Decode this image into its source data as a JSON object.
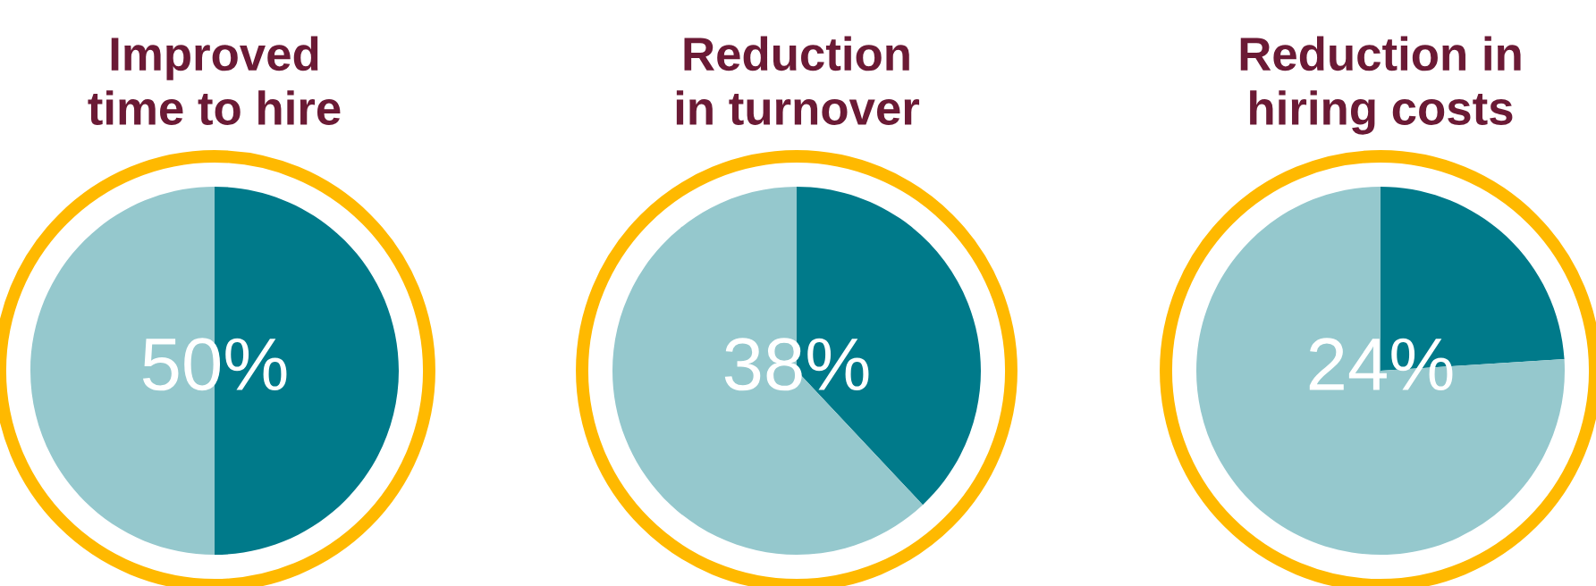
{
  "chart_data": [
    {
      "type": "pie",
      "title": "Improved\ntime to hire",
      "categories": [
        null,
        null
      ],
      "values": [
        50,
        50
      ],
      "colors": [
        "#007a8a",
        "#95c8cd"
      ],
      "value_labels": [
        "50%",
        null
      ]
    },
    {
      "type": "pie",
      "title": "Reduction\nin turnover",
      "categories": [
        null,
        null
      ],
      "values": [
        38,
        62
      ],
      "colors": [
        "#007a8a",
        "#95c8cd"
      ],
      "value_labels": [
        "38%",
        null
      ]
    },
    {
      "type": "pie",
      "title": "Reduction in\nhiring costs",
      "categories": [
        null,
        null
      ],
      "values": [
        24,
        76
      ],
      "colors": [
        "#007a8a",
        "#95c8cd"
      ],
      "value_labels": [
        "24%",
        null
      ]
    }
  ]
}
